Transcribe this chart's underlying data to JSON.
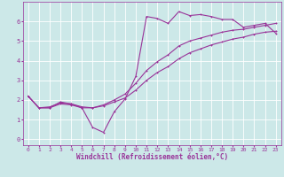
{
  "title": "",
  "xlabel": "Windchill (Refroidissement éolien,°C)",
  "ylabel": "",
  "bg_color": "#cce8e8",
  "line_color": "#993399",
  "grid_color": "#ffffff",
  "xlim": [
    -0.5,
    23.5
  ],
  "ylim": [
    -0.3,
    7.0
  ],
  "xticks": [
    0,
    1,
    2,
    3,
    4,
    5,
    6,
    7,
    8,
    9,
    10,
    11,
    12,
    13,
    14,
    15,
    16,
    17,
    18,
    19,
    20,
    21,
    22,
    23
  ],
  "yticks": [
    0,
    1,
    2,
    3,
    4,
    5,
    6
  ],
  "series1_x": [
    0,
    1,
    2,
    3,
    4,
    5,
    6,
    7,
    8,
    9,
    10,
    11,
    12,
    13,
    14,
    15,
    16,
    17,
    18,
    19,
    20,
    21,
    22,
    23
  ],
  "series1_y": [
    2.2,
    1.6,
    1.6,
    1.9,
    1.8,
    1.6,
    0.6,
    0.35,
    1.4,
    2.05,
    3.2,
    6.25,
    6.15,
    5.9,
    6.5,
    6.3,
    6.35,
    6.25,
    6.1,
    6.1,
    5.7,
    5.8,
    5.9,
    5.4
  ],
  "series2_x": [
    0,
    1,
    2,
    3,
    4,
    5,
    6,
    7,
    8,
    9,
    10,
    11,
    12,
    13,
    14,
    15,
    16,
    17,
    18,
    19,
    20,
    21,
    22,
    23
  ],
  "series2_y": [
    2.2,
    1.6,
    1.6,
    1.8,
    1.75,
    1.6,
    1.6,
    1.7,
    1.9,
    2.1,
    2.5,
    3.0,
    3.4,
    3.7,
    4.1,
    4.4,
    4.6,
    4.8,
    4.95,
    5.1,
    5.2,
    5.35,
    5.45,
    5.5
  ],
  "series3_x": [
    0,
    1,
    2,
    3,
    4,
    5,
    6,
    7,
    8,
    9,
    10,
    11,
    12,
    13,
    14,
    15,
    16,
    17,
    18,
    19,
    20,
    21,
    22,
    23
  ],
  "series3_y": [
    2.2,
    1.6,
    1.65,
    1.85,
    1.8,
    1.65,
    1.6,
    1.75,
    2.0,
    2.3,
    2.85,
    3.5,
    3.95,
    4.3,
    4.75,
    5.0,
    5.15,
    5.3,
    5.45,
    5.55,
    5.6,
    5.7,
    5.8,
    5.9
  ],
  "tick_fontsize": 4.5,
  "xlabel_fontsize": 5.5,
  "marker_size": 2.0,
  "line_width": 0.8
}
